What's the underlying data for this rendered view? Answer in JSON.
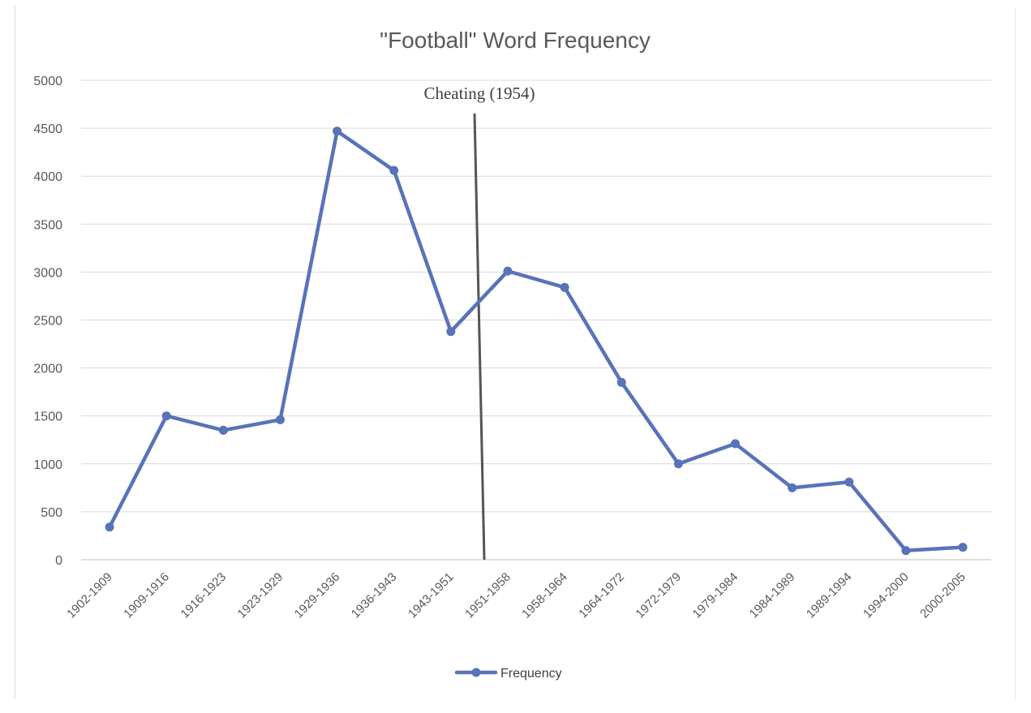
{
  "chart_data": {
    "type": "line",
    "title": "\"Football\" Word Frequency",
    "xlabel": "",
    "ylabel": "",
    "categories": [
      "1902-1909",
      "1909-1916",
      "1916-1923",
      "1923-1929",
      "1929-1936",
      "1936-1943",
      "1943-1951",
      "1951-1958",
      "1958-1964",
      "1964-1972",
      "1972-1979",
      "1979-1984",
      "1984-1989",
      "1989-1994",
      "1994-2000",
      "2000-2005"
    ],
    "series": [
      {
        "name": "Frequency",
        "color": "#5873b8",
        "values": [
          340,
          1500,
          1350,
          1460,
          4470,
          4060,
          2380,
          3010,
          2840,
          1850,
          1000,
          1210,
          750,
          810,
          95,
          130
        ]
      }
    ],
    "ylim": [
      0,
      5000
    ],
    "yticks": [
      0,
      500,
      1000,
      1500,
      2000,
      2500,
      3000,
      3500,
      4000,
      4500,
      5000
    ],
    "grid": true,
    "legend_position": "bottom",
    "annotation": {
      "label": "Cheating (1954)",
      "line_color": "#555555"
    }
  }
}
